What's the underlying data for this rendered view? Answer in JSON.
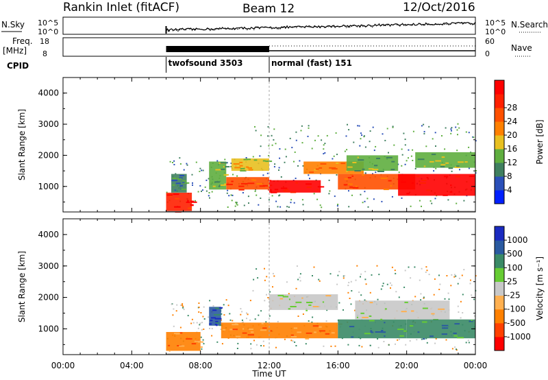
{
  "header": {
    "title": "Rankin Inlet (fitACF)",
    "beam": "Beam 12",
    "date": "12/Oct/2016"
  },
  "noise_panel": {
    "left_label": "N.Sky",
    "right_label": "N.Search",
    "left_ticks": [
      "10^5",
      "10^0"
    ],
    "right_ticks": [
      "10^5",
      "10^0"
    ]
  },
  "freq_panel": {
    "left_label_line1": "Freq.",
    "left_label_line2": "[MHz]",
    "right_label": "Nave",
    "left_ticks": [
      "18",
      "8"
    ],
    "right_ticks": [
      "60",
      "0"
    ]
  },
  "cpid": {
    "label": "CPID",
    "segments": [
      {
        "start_hour": 6,
        "name": "twofsound 3503"
      },
      {
        "start_hour": 12,
        "name": "normal (fast) 151"
      }
    ]
  },
  "time_axis": {
    "xlabel": "Time UT",
    "ticks": [
      "00:00",
      "04:00",
      "08:00",
      "12:00",
      "16:00",
      "20:00",
      "00:00"
    ]
  },
  "colors": {
    "power": [
      "#0020ff",
      "#2a4fb8",
      "#3f7f5f",
      "#5fae3f",
      "#e8c020",
      "#ff8000",
      "#ff5000",
      "#ff2000",
      "#ff0000"
    ],
    "velocity": [
      "#ff0000",
      "#ff4000",
      "#ff8000",
      "#ffb050",
      "#c8c8c8",
      "#66cc33",
      "#3a8a66",
      "#2a5aa0",
      "#1a2ac0"
    ]
  },
  "chart_data": [
    {
      "type": "heatmap",
      "name": "power",
      "ylabel": "Slant Range [km]",
      "xlabel": "",
      "ylim": [
        180,
        4500
      ],
      "xlim_hours": [
        0,
        24
      ],
      "y_ticks": [
        "1000",
        "2000",
        "3000",
        "4000"
      ],
      "colorbar_label": "Power [dB]",
      "colorbar_ticks": [
        "4",
        "8",
        "12",
        "16",
        "20",
        "24",
        "28"
      ],
      "regions": [
        {
          "t": [
            6.0,
            7.5
          ],
          "r": [
            200,
            800
          ],
          "level": 7
        },
        {
          "t": [
            6.3,
            7.2
          ],
          "r": [
            800,
            1400
          ],
          "level": 2
        },
        {
          "t": [
            8.5,
            9.5
          ],
          "r": [
            900,
            1800
          ],
          "level": 3
        },
        {
          "t": [
            9.5,
            12.0
          ],
          "r": [
            900,
            1300
          ],
          "level": 6
        },
        {
          "t": [
            9.8,
            12.0
          ],
          "r": [
            1500,
            1900
          ],
          "level": 4
        },
        {
          "t": [
            12.0,
            15.0
          ],
          "r": [
            800,
            1200
          ],
          "level": 8
        },
        {
          "t": [
            14.0,
            17.5
          ],
          "r": [
            1400,
            1800
          ],
          "level": 5
        },
        {
          "t": [
            16.0,
            20.5
          ],
          "r": [
            900,
            1400
          ],
          "level": 6
        },
        {
          "t": [
            16.5,
            19.5
          ],
          "r": [
            1500,
            2000
          ],
          "level": 3
        },
        {
          "t": [
            19.5,
            24.0
          ],
          "r": [
            700,
            1400
          ],
          "level": 8
        },
        {
          "t": [
            20.5,
            24.0
          ],
          "r": [
            1600,
            2100
          ],
          "level": 3
        }
      ]
    },
    {
      "type": "heatmap",
      "name": "velocity",
      "ylabel": "Slant Range [km]",
      "xlabel": "Time UT",
      "ylim": [
        180,
        4500
      ],
      "xlim_hours": [
        0,
        24
      ],
      "y_ticks": [
        "1000",
        "2000",
        "3000",
        "4000"
      ],
      "colorbar_label": "Velocity [m s⁻¹]",
      "colorbar_ticks": [
        "1000",
        "500",
        "100",
        "25",
        "-25",
        "-100",
        "-500",
        "-1000"
      ],
      "regions": [
        {
          "t": [
            6.0,
            8.0
          ],
          "r": [
            300,
            900
          ],
          "level": 2
        },
        {
          "t": [
            8.5,
            9.2
          ],
          "r": [
            1100,
            1700
          ],
          "level": 7
        },
        {
          "t": [
            9.2,
            12.0
          ],
          "r": [
            700,
            1200
          ],
          "level": 2
        },
        {
          "t": [
            12.0,
            16.0
          ],
          "r": [
            1600,
            2100
          ],
          "level": 4
        },
        {
          "t": [
            12.0,
            16.0
          ],
          "r": [
            700,
            1200
          ],
          "level": 2
        },
        {
          "t": [
            16.0,
            20.0
          ],
          "r": [
            700,
            1300
          ],
          "level": 6
        },
        {
          "t": [
            17.0,
            22.5
          ],
          "r": [
            1300,
            1900
          ],
          "level": 4
        },
        {
          "t": [
            20.0,
            24.0
          ],
          "r": [
            700,
            1300
          ],
          "level": 6
        }
      ]
    }
  ]
}
